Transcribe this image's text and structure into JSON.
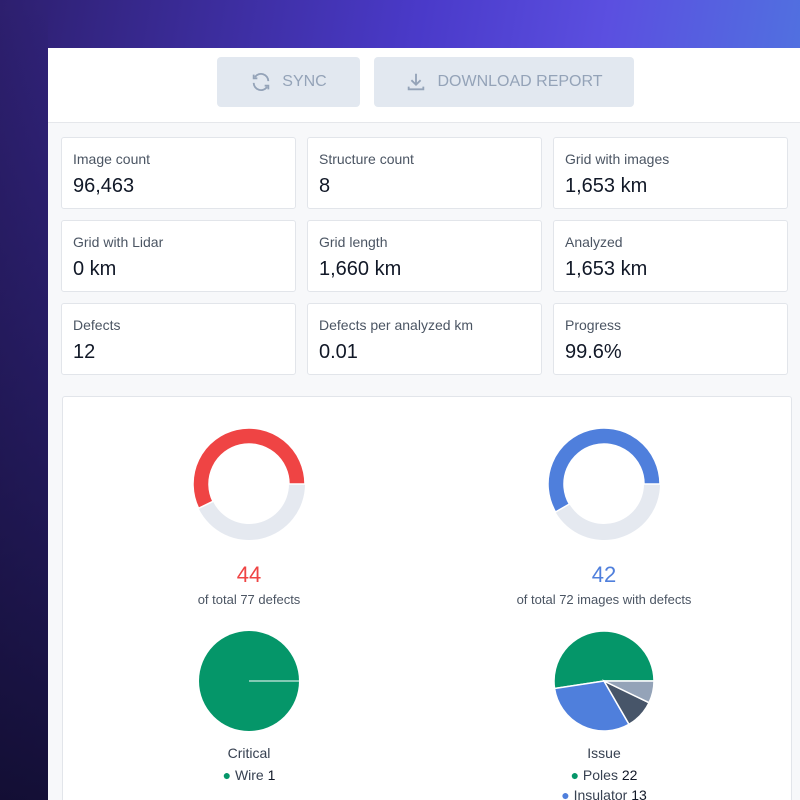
{
  "toolbar": {
    "buttons": [
      "SYNC",
      "DOWNLOAD REPORT"
    ]
  },
  "stats": [
    {
      "label": "Image count",
      "value": "96,463"
    },
    {
      "label": "Structure count",
      "value": "8"
    },
    {
      "label": "Grid with images",
      "value": "1,653 km"
    },
    {
      "label": "Grid with Lidar",
      "value": "0 km"
    },
    {
      "label": "Grid length",
      "value": "1,660 km"
    },
    {
      "label": "Analyzed",
      "value": "1,653 km"
    },
    {
      "label": "Defects",
      "value": "12"
    },
    {
      "label": "Defects per analyzed km",
      "value": "0.01"
    },
    {
      "label": "Progress",
      "value": "99.6%"
    }
  ],
  "chart_data": [
    {
      "type": "donut",
      "value": 44,
      "total": 77,
      "caption": "of total 77 defects",
      "color": "#ef4444",
      "rest_color": "#e5e9f0"
    },
    {
      "type": "donut",
      "value": 42,
      "total": 72,
      "caption": "of total 72 images with defects",
      "color": "#4f7fdc",
      "rest_color": "#e5e9f0"
    },
    {
      "type": "pie",
      "title": "Critical",
      "categories": [
        "Wire"
      ],
      "values": [
        1
      ],
      "colors": [
        "#059669"
      ]
    },
    {
      "type": "pie",
      "title": "Issue",
      "categories": [
        "Poles",
        "Insulator",
        null,
        null
      ],
      "values": [
        22,
        13,
        4,
        3
      ],
      "colors": [
        "#059669",
        "#4f7fdc",
        "#475569",
        "#94a3b8"
      ]
    }
  ]
}
